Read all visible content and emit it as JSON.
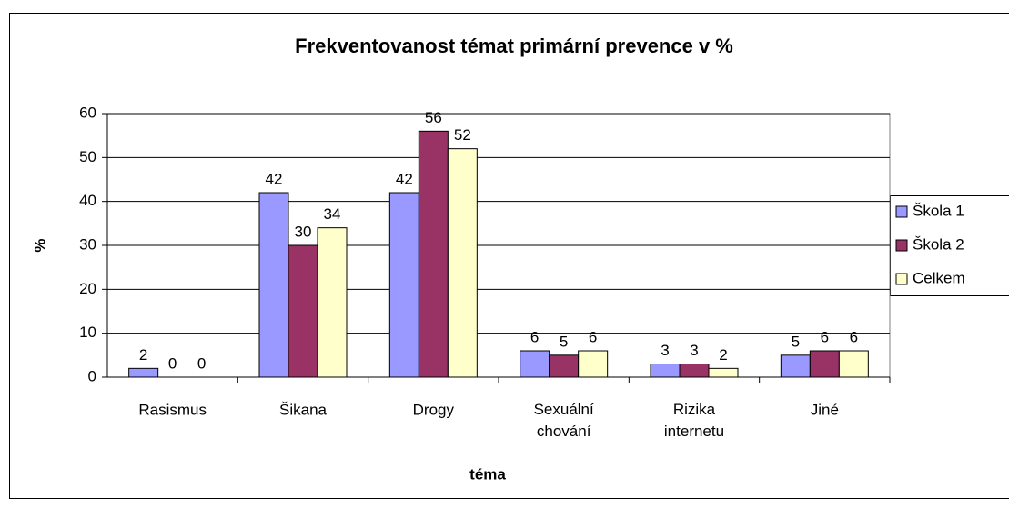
{
  "chart_data": {
    "type": "bar",
    "title": "Frekventovanost témat primární prevence v %",
    "x_label": "téma",
    "y_label": "%",
    "categories": [
      "Rasismus",
      "Šikana",
      "Drogy",
      "Sexuální chování",
      "Rizika internetu",
      "Jiné"
    ],
    "series": [
      {
        "name": "Škola 1",
        "color": "#9999ff",
        "values": [
          2,
          42,
          42,
          6,
          3,
          5
        ]
      },
      {
        "name": "Škola 2",
        "color": "#993366",
        "values": [
          0,
          30,
          56,
          5,
          3,
          6
        ]
      },
      {
        "name": "Celkem",
        "color": "#ffffcc",
        "values": [
          0,
          34,
          52,
          6,
          2,
          6
        ]
      }
    ],
    "ylim": [
      0,
      60
    ],
    "yticks": [
      0,
      10,
      20,
      30,
      40,
      50,
      60
    ],
    "grid": true,
    "legend": "right"
  }
}
